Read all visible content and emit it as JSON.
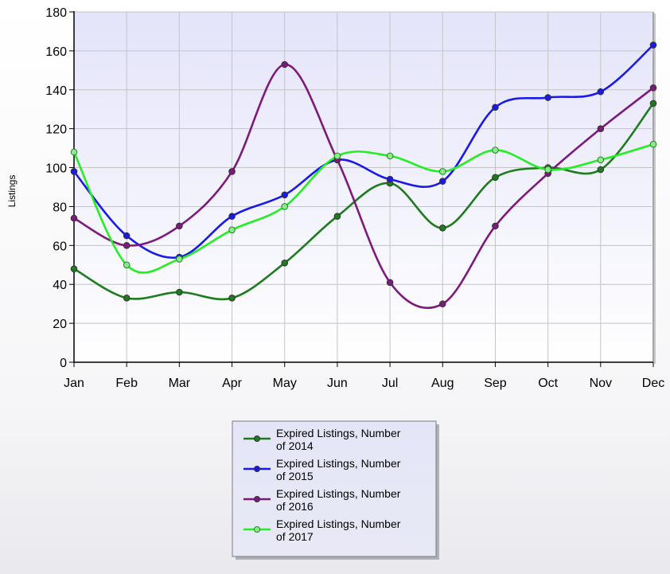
{
  "chart_data": {
    "type": "line",
    "categories": [
      "Jan",
      "Feb",
      "Mar",
      "Apr",
      "May",
      "Jun",
      "Jul",
      "Aug",
      "Sep",
      "Oct",
      "Nov",
      "Dec"
    ],
    "ylabel": "Listings",
    "ylim": [
      0,
      180
    ],
    "yticks": [
      0,
      20,
      40,
      60,
      80,
      100,
      120,
      140,
      160,
      180
    ],
    "grid": true,
    "smooth": true,
    "legend": "bottom-center",
    "series": [
      {
        "label_line1": "Expired Listings, Number",
        "label_line2": "of 2014",
        "color": "#1e7b1e",
        "marker_fill": "#1e7b1e",
        "values": [
          48,
          33,
          36,
          33,
          51,
          75,
          92,
          69,
          95,
          100,
          99,
          133
        ]
      },
      {
        "label_line1": "Expired Listings, Number",
        "label_line2": "of 2015",
        "color": "#1a1ae6",
        "marker_fill": "#1a1ae6",
        "values": [
          98,
          65,
          54,
          75,
          86,
          104,
          94,
          93,
          131,
          136,
          139,
          163
        ]
      },
      {
        "label_line1": "Expired Listings, Number",
        "label_line2": "of 2016",
        "color": "#7b1a7b",
        "marker_fill": "#7b1a7b",
        "values": [
          74,
          60,
          70,
          98,
          153,
          104,
          41,
          30,
          70,
          97,
          120,
          141
        ]
      },
      {
        "label_line1": "Expired Listings, Number",
        "label_line2": "of 2017",
        "color": "#22ee22",
        "marker_fill": "#8fe88f",
        "values": [
          108,
          50,
          53,
          68,
          80,
          106,
          106,
          98,
          109,
          99,
          104,
          112
        ]
      }
    ]
  }
}
